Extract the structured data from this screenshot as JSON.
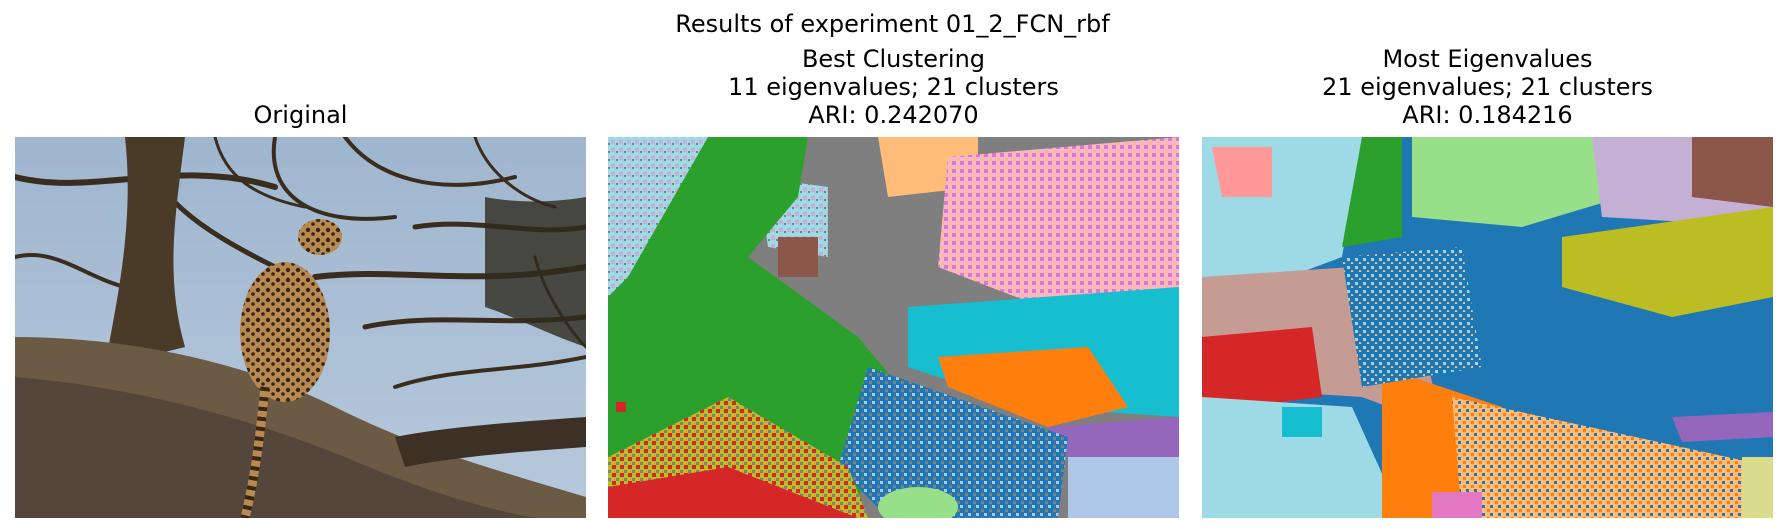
{
  "figure": {
    "suptitle": "Results of experiment 01_2_FCN_rbf"
  },
  "panels": [
    {
      "title_lines": [
        "Original"
      ],
      "image": "photo of a leopard resting on a large tree branch under blue sky"
    },
    {
      "title_lines": [
        "Best Clustering",
        "11 eigenvalues; 21 clusters",
        "ARI: 0.242070"
      ],
      "image": "segmentation map with 21 color-coded clusters"
    },
    {
      "title_lines": [
        "Most Eigenvalues",
        "21 eigenvalues; 21 clusters",
        "ARI: 0.184216"
      ],
      "image": "segmentation map with 21 color-coded clusters"
    }
  ],
  "colors": {
    "tab_blue": "#1f77b4",
    "tab_orange": "#ff7f0e",
    "tab_green": "#2ca02c",
    "tab_red": "#d62728",
    "tab_purple": "#9467bd",
    "tab_brown": "#8c564b",
    "tab_pink": "#e377c2",
    "tab_gray": "#7f7f7f",
    "tab_olive": "#bcbd22",
    "tab_cyan": "#17becf"
  }
}
